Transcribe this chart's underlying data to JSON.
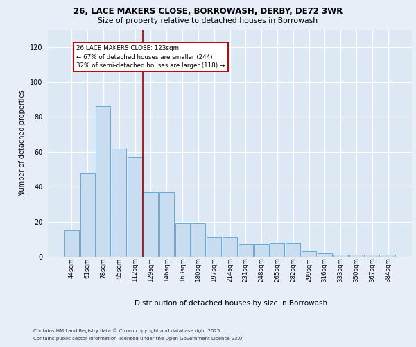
{
  "title_line1": "26, LACE MAKERS CLOSE, BORROWASH, DERBY, DE72 3WR",
  "title_line2": "Size of property relative to detached houses in Borrowash",
  "xlabel": "Distribution of detached houses by size in Borrowash",
  "ylabel": "Number of detached properties",
  "categories": [
    "44sqm",
    "61sqm",
    "78sqm",
    "95sqm",
    "112sqm",
    "129sqm",
    "146sqm",
    "163sqm",
    "180sqm",
    "197sqm",
    "214sqm",
    "231sqm",
    "248sqm",
    "265sqm",
    "282sqm",
    "299sqm",
    "316sqm",
    "333sqm",
    "350sqm",
    "367sqm",
    "384sqm"
  ],
  "values": [
    15,
    48,
    86,
    62,
    57,
    37,
    37,
    19,
    19,
    11,
    11,
    7,
    7,
    8,
    8,
    3,
    2,
    1,
    1,
    1,
    1
  ],
  "bar_color": "#c9ddf0",
  "bar_edge_color": "#6aaad4",
  "vline_color": "#c00000",
  "vline_x": 4.5,
  "annotation_text_line1": "26 LACE MAKERS CLOSE: 123sqm",
  "annotation_text_line2": "← 67% of detached houses are smaller (244)",
  "annotation_text_line3": "32% of semi-detached houses are larger (118) →",
  "ylim": [
    0,
    130
  ],
  "yticks": [
    0,
    20,
    40,
    60,
    80,
    100,
    120
  ],
  "plot_bg_color": "#dde8f5",
  "fig_bg_color": "#e8eef8",
  "footer_line1": "Contains HM Land Registry data © Crown copyright and database right 2025.",
  "footer_line2": "Contains public sector information licensed under the Open Government Licence v3.0."
}
